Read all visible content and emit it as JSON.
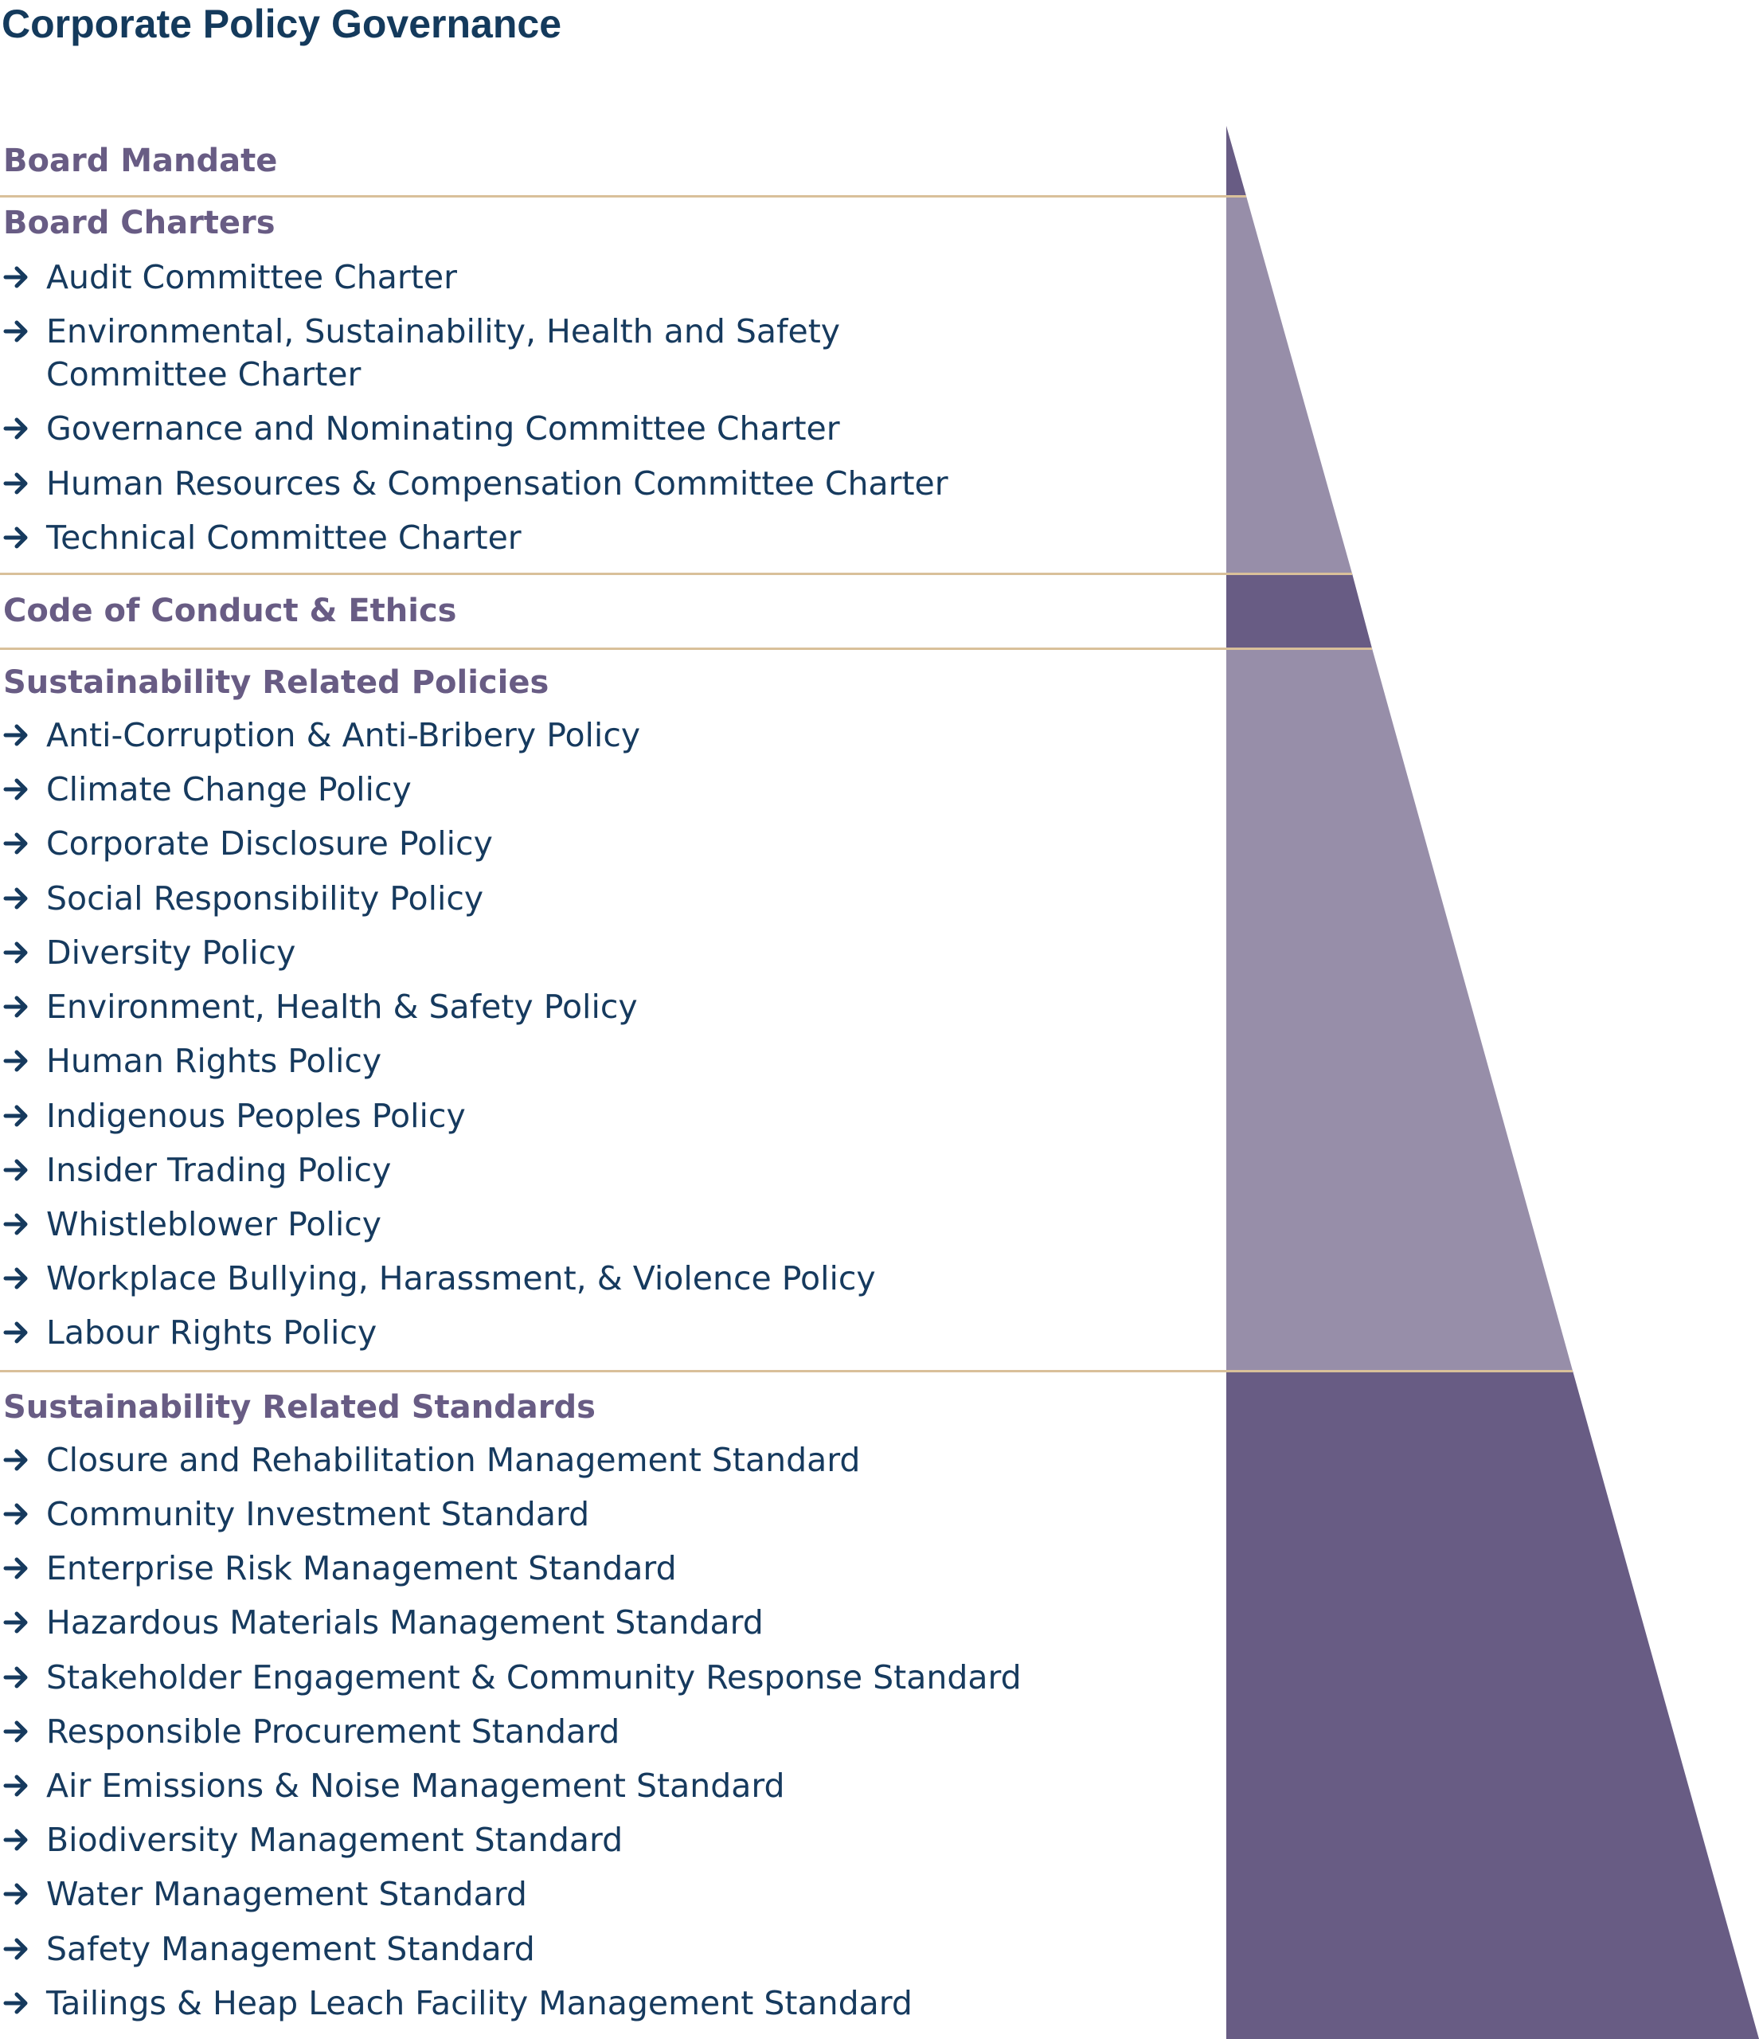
{
  "title": "Corporate Policy Governance",
  "colors": {
    "title": "#143a5c",
    "heading": "#685c84",
    "item_text": "#163a5e",
    "divider": "#d9c09a",
    "pyramid_light": "#978ea9",
    "pyramid_dark": "#685c84"
  },
  "icons": {
    "bullet": "arrow-right-icon"
  },
  "sections": [
    {
      "heading": "Board Mandate",
      "items": []
    },
    {
      "heading": "Board Charters",
      "items": [
        "Audit Committee Charter",
        "Environmental, Sustainability, Health and Safety Committee Charter",
        "Governance and Nominating Committee Charter",
        "Human Resources & Compensation Committee Charter",
        "Technical Committee Charter"
      ]
    },
    {
      "heading": "Code of Conduct & Ethics",
      "items": []
    },
    {
      "heading": "Sustainability Related Policies",
      "items": [
        "Anti-Corruption & Anti-Bribery Policy",
        "Climate Change Policy",
        "Corporate Disclosure Policy",
        "Social Responsibility Policy",
        "Diversity Policy",
        "Environment, Health & Safety Policy",
        "Human Rights Policy",
        "Indigenous Peoples Policy",
        "Insider Trading Policy",
        "Whistleblower Policy",
        "Workplace Bullying, Harassment, & Violence Policy",
        "Labour Rights Policy"
      ]
    },
    {
      "heading": "Sustainability Related Standards",
      "items": [
        "Closure and Rehabilitation Management Standard",
        "Community Investment Standard",
        "Enterprise Risk Management Standard",
        "Hazardous Materials Management Standard",
        "Stakeholder Engagement & Community Response Standard",
        "Responsible Procurement Standard",
        "Air Emissions & Noise Management Standard",
        "Biodiversity Management Standard",
        "Water Management Standard",
        "Safety Management Standard",
        "Tailings & Heap Leach Facility Management Standard"
      ]
    }
  ]
}
